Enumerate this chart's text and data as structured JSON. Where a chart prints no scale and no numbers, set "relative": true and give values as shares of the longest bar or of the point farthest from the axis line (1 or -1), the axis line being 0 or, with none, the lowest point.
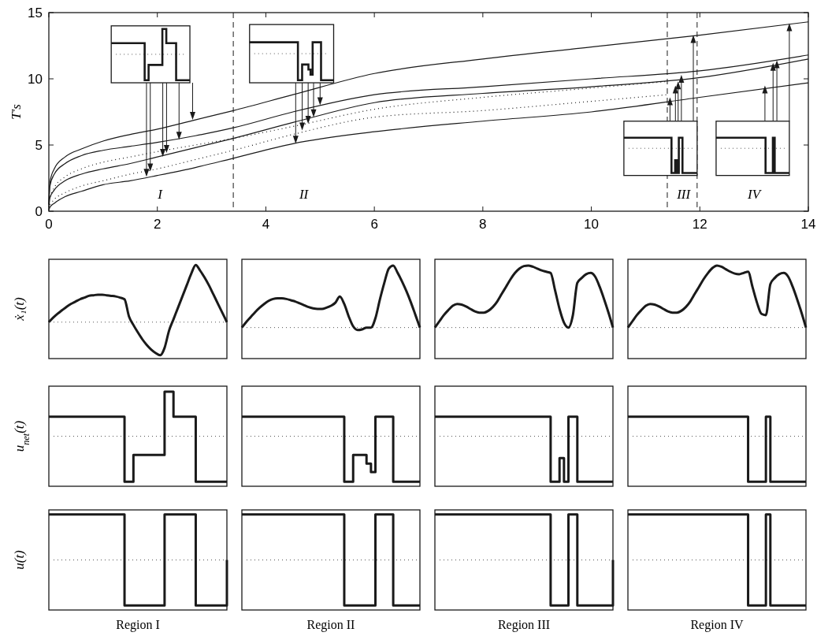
{
  "chart_data": [
    {
      "type": "line",
      "ylabel": "T's",
      "xlim": [
        0,
        14
      ],
      "ylim": [
        0,
        15
      ],
      "xticks": [
        0,
        2,
        4,
        6,
        8,
        10,
        12,
        14
      ],
      "yticks": [
        0,
        5,
        10,
        15
      ],
      "series": [
        {
          "color": "#1a1a1a",
          "x": [
            0,
            0.02,
            0.1,
            0.3,
            0.6,
            1,
            1.5,
            2,
            2.7,
            3.4,
            4.5,
            6,
            8,
            10,
            12,
            14
          ],
          "values": [
            0.5,
            2.2,
            3.2,
            4.1,
            4.7,
            5.3,
            5.8,
            6.2,
            6.9,
            7.6,
            8.8,
            10.4,
            11.5,
            12.4,
            13.3,
            14.3
          ]
        },
        {
          "color": "#1a1a1a",
          "x": [
            0,
            0.02,
            0.1,
            0.3,
            0.6,
            1,
            1.5,
            2,
            2.7,
            3.4,
            4.5,
            6,
            8,
            10,
            12,
            14
          ],
          "values": [
            0.5,
            1.9,
            2.8,
            3.6,
            4.2,
            4.6,
            4.9,
            5.2,
            5.7,
            6.3,
            7.5,
            8.8,
            9.4,
            10,
            10.6,
            11.8
          ]
        },
        {
          "color": "#1a1a1a",
          "x": [
            0,
            0.02,
            0.1,
            0.3,
            0.6,
            1,
            1.5,
            2,
            2.7,
            3.4,
            4.5,
            6,
            8,
            10,
            12,
            14
          ],
          "values": [
            0.3,
            1,
            1.6,
            2.3,
            2.8,
            3.2,
            3.6,
            4.1,
            4.8,
            5.5,
            6.7,
            8.2,
            8.9,
            9.4,
            10.1,
            11.5
          ]
        },
        {
          "color": "#1a1a1a",
          "x": [
            0,
            0.02,
            0.1,
            0.3,
            0.6,
            1,
            1.5,
            2,
            2.7,
            3.4,
            4.5,
            6,
            8,
            10,
            12,
            14
          ],
          "values": [
            0.1,
            0.3,
            0.6,
            1.1,
            1.5,
            2,
            2.3,
            2.7,
            3.3,
            4,
            5.1,
            6,
            6.8,
            7.5,
            8.6,
            9.7
          ]
        },
        {
          "color": "#1a1a1a",
          "line_style": "dotted",
          "x": [
            0.02,
            0.1,
            0.3,
            0.6,
            1,
            1.5,
            2,
            2.7,
            3.4,
            4.5,
            6,
            8,
            10,
            11.4
          ],
          "values": [
            1.1,
            1.8,
            2.6,
            3.2,
            3.7,
            4.1,
            4.5,
            5,
            5.5,
            6.4,
            7.7,
            8.6,
            9.3,
            9.8
          ]
        },
        {
          "color": "#1a1a1a",
          "line_style": "dotted",
          "x": [
            0.02,
            0.1,
            0.3,
            0.6,
            1,
            1.5,
            2,
            2.7,
            3.4,
            4.5,
            6,
            8,
            10,
            11.4
          ],
          "values": [
            0.5,
            0.9,
            1.4,
            1.9,
            2.3,
            2.8,
            3.2,
            3.9,
            4.6,
            5.8,
            7.1,
            7.6,
            8.3,
            8.8
          ]
        }
      ],
      "ref_lines": [
        {
          "axis": "x",
          "value": 3.4,
          "line_style": "dashed"
        },
        {
          "axis": "x",
          "value": 11.4,
          "line_style": "dashed"
        },
        {
          "axis": "x",
          "value": 11.95,
          "line_style": "dashed"
        }
      ],
      "annotations": [
        "I",
        "II",
        "III",
        "IV"
      ]
    },
    {
      "type": "line",
      "relative": true,
      "ylabel": "ẋ₁(t)",
      "color": "#1a1a1a",
      "ref_lines": [
        {
          "axis": "y",
          "value": 0,
          "line_style": "dotted"
        }
      ],
      "categories": [
        null,
        null,
        null,
        null,
        null,
        null,
        null,
        null,
        null,
        null,
        null,
        null,
        null,
        null,
        null,
        null,
        null,
        null,
        null,
        null,
        null,
        null,
        null,
        null,
        null,
        null,
        null,
        null,
        null,
        null,
        null,
        null,
        null,
        null,
        null,
        null,
        null,
        null,
        null,
        null,
        null
      ],
      "values": [
        0,
        0.08,
        0.15,
        0.21,
        0.27,
        0.32,
        0.36,
        0.4,
        0.43,
        0.46,
        0.47,
        0.48,
        0.48,
        0.47,
        0.46,
        0.45,
        0.43,
        0.4,
        0.1,
        -0.05,
        -0.18,
        -0.3,
        -0.4,
        -0.48,
        -0.54,
        -0.58,
        -0.45,
        -0.15,
        0.05,
        0.25,
        0.45,
        0.65,
        0.85,
        1,
        0.9,
        0.78,
        0.64,
        0.48,
        0.32,
        0.16,
        0
      ]
    },
    {
      "type": "line",
      "relative": true,
      "color": "#1a1a1a",
      "ref_lines": [
        {
          "axis": "y",
          "value": 0,
          "line_style": "dotted"
        }
      ],
      "categories": [
        null,
        null,
        null,
        null,
        null,
        null,
        null,
        null,
        null,
        null,
        null,
        null,
        null,
        null,
        null,
        null,
        null,
        null,
        null,
        null,
        null,
        null,
        null,
        null,
        null,
        null,
        null,
        null,
        null,
        null,
        null,
        null,
        null,
        null,
        null,
        null,
        null,
        null,
        null,
        null,
        null
      ],
      "values": [
        0,
        0.09,
        0.17,
        0.25,
        0.32,
        0.38,
        0.43,
        0.46,
        0.47,
        0.47,
        0.46,
        0.44,
        0.42,
        0.39,
        0.36,
        0.33,
        0.31,
        0.3,
        0.3,
        0.32,
        0.35,
        0.4,
        0.5,
        0.38,
        0.18,
        0.02,
        -0.04,
        -0.03,
        0,
        0,
        0.15,
        0.45,
        0.72,
        0.95,
        1,
        0.88,
        0.74,
        0.58,
        0.4,
        0.2,
        0
      ]
    },
    {
      "type": "line",
      "relative": true,
      "color": "#1a1a1a",
      "ref_lines": [
        {
          "axis": "y",
          "value": 0,
          "line_style": "dotted"
        }
      ],
      "categories": [
        null,
        null,
        null,
        null,
        null,
        null,
        null,
        null,
        null,
        null,
        null,
        null,
        null,
        null,
        null,
        null,
        null,
        null,
        null,
        null,
        null,
        null,
        null,
        null,
        null,
        null,
        null,
        null,
        null,
        null,
        null,
        null,
        null,
        null,
        null,
        null,
        null,
        null,
        null,
        null,
        null
      ],
      "values": [
        0,
        0.1,
        0.2,
        0.28,
        0.35,
        0.38,
        0.37,
        0.34,
        0.3,
        0.26,
        0.24,
        0.24,
        0.27,
        0.33,
        0.42,
        0.54,
        0.66,
        0.78,
        0.88,
        0.95,
        0.99,
        1,
        0.98,
        0.95,
        0.92,
        0.9,
        0.88,
        0.6,
        0.3,
        0.08,
        0,
        0.2,
        0.72,
        0.8,
        0.86,
        0.88,
        0.82,
        0.66,
        0.46,
        0.24,
        0
      ]
    },
    {
      "type": "line",
      "relative": true,
      "color": "#1a1a1a",
      "ref_lines": [
        {
          "axis": "y",
          "value": 0,
          "line_style": "dotted"
        }
      ],
      "categories": [
        null,
        null,
        null,
        null,
        null,
        null,
        null,
        null,
        null,
        null,
        null,
        null,
        null,
        null,
        null,
        null,
        null,
        null,
        null,
        null,
        null,
        null,
        null,
        null,
        null,
        null,
        null,
        null,
        null,
        null,
        null,
        null,
        null,
        null,
        null,
        null,
        null,
        null,
        null,
        null,
        null
      ],
      "values": [
        0,
        0.1,
        0.2,
        0.28,
        0.35,
        0.38,
        0.37,
        0.34,
        0.3,
        0.26,
        0.24,
        0.24,
        0.27,
        0.33,
        0.42,
        0.54,
        0.66,
        0.78,
        0.88,
        0.96,
        1,
        0.98,
        0.94,
        0.9,
        0.87,
        0.86,
        0.88,
        0.9,
        0.65,
        0.4,
        0.22,
        0.2,
        0.7,
        0.8,
        0.86,
        0.88,
        0.82,
        0.66,
        0.46,
        0.24,
        0
      ]
    },
    {
      "type": "step",
      "relative": true,
      "ylabel": "u$_{net}$(t)",
      "color": "#1a1a1a",
      "ref_lines": [
        {
          "axis": "y",
          "value": 0,
          "line_style": "dotted"
        }
      ],
      "categories": [
        null,
        null,
        null,
        null,
        null,
        null,
        null,
        null,
        null,
        null,
        null,
        null,
        null,
        null,
        null,
        null,
        null,
        null,
        null,
        null,
        null,
        null,
        null,
        null,
        null,
        null,
        null,
        null,
        null,
        null,
        null,
        null,
        null,
        null,
        null,
        null,
        null,
        null,
        null,
        null,
        null
      ],
      "values": [
        0.43,
        0.43,
        0.43,
        0.43,
        0.43,
        0.43,
        0.43,
        0.43,
        0.43,
        0.43,
        0.43,
        0.43,
        0.43,
        0.43,
        0.43,
        0.43,
        0.43,
        -1,
        -1,
        -0.41,
        -0.41,
        -0.41,
        -0.41,
        -0.41,
        -0.41,
        -0.41,
        0.98,
        0.98,
        0.43,
        0.43,
        0.43,
        0.43,
        0.43,
        -1,
        -1,
        -1,
        -1,
        -1,
        -1,
        -1,
        -1
      ]
    },
    {
      "type": "step",
      "relative": true,
      "color": "#1a1a1a",
      "ref_lines": [
        {
          "axis": "y",
          "value": 0,
          "line_style": "dotted"
        }
      ],
      "categories": [
        null,
        null,
        null,
        null,
        null,
        null,
        null,
        null,
        null,
        null,
        null,
        null,
        null,
        null,
        null,
        null,
        null,
        null,
        null,
        null,
        null,
        null,
        null,
        null,
        null,
        null,
        null,
        null,
        null,
        null,
        null,
        null,
        null,
        null,
        null,
        null,
        null,
        null,
        null,
        null,
        null
      ],
      "values": [
        0.43,
        0.43,
        0.43,
        0.43,
        0.43,
        0.43,
        0.43,
        0.43,
        0.43,
        0.43,
        0.43,
        0.43,
        0.43,
        0.43,
        0.43,
        0.43,
        0.43,
        0.43,
        0.43,
        0.43,
        0.43,
        0.43,
        0.43,
        -1,
        -1,
        -0.41,
        -0.41,
        -0.41,
        -0.6,
        -0.79,
        0.43,
        0.43,
        0.43,
        0.43,
        -1,
        -1,
        -1,
        -1,
        -1,
        -1,
        -1
      ]
    },
    {
      "type": "step",
      "relative": true,
      "color": "#1a1a1a",
      "ref_lines": [
        {
          "axis": "y",
          "value": 0,
          "line_style": "dotted"
        }
      ],
      "categories": [
        null,
        null,
        null,
        null,
        null,
        null,
        null,
        null,
        null,
        null,
        null,
        null,
        null,
        null,
        null,
        null,
        null,
        null,
        null,
        null,
        null,
        null,
        null,
        null,
        null,
        null,
        null,
        null,
        null,
        null,
        null,
        null,
        null,
        null,
        null,
        null,
        null,
        null,
        null,
        null,
        null
      ],
      "values": [
        0.43,
        0.43,
        0.43,
        0.43,
        0.43,
        0.43,
        0.43,
        0.43,
        0.43,
        0.43,
        0.43,
        0.43,
        0.43,
        0.43,
        0.43,
        0.43,
        0.43,
        0.43,
        0.43,
        0.43,
        0.43,
        0.43,
        0.43,
        0.43,
        0.43,
        0.43,
        -1,
        -1,
        -0.48,
        -1,
        0.43,
        0.43,
        -1,
        -1,
        -1,
        -1,
        -1,
        -1,
        -1,
        -1,
        -1
      ]
    },
    {
      "type": "step",
      "relative": true,
      "color": "#1a1a1a",
      "ref_lines": [
        {
          "axis": "y",
          "value": 0,
          "line_style": "dotted"
        }
      ],
      "categories": [
        null,
        null,
        null,
        null,
        null,
        null,
        null,
        null,
        null,
        null,
        null,
        null,
        null,
        null,
        null,
        null,
        null,
        null,
        null,
        null,
        null,
        null,
        null,
        null,
        null,
        null,
        null,
        null,
        null,
        null,
        null,
        null,
        null,
        null,
        null,
        null,
        null,
        null,
        null,
        null,
        null
      ],
      "values": [
        0.43,
        0.43,
        0.43,
        0.43,
        0.43,
        0.43,
        0.43,
        0.43,
        0.43,
        0.43,
        0.43,
        0.43,
        0.43,
        0.43,
        0.43,
        0.43,
        0.43,
        0.43,
        0.43,
        0.43,
        0.43,
        0.43,
        0.43,
        0.43,
        0.43,
        0.43,
        0.43,
        -1,
        -1,
        -1,
        -1,
        0.43,
        -1,
        -1,
        -1,
        -1,
        -1,
        -1,
        -1,
        -1,
        -1
      ]
    },
    {
      "type": "step",
      "relative": true,
      "ylabel": "u(t)",
      "xlabel": "Region I",
      "color": "#1a1a1a",
      "ref_lines": [
        {
          "axis": "y",
          "value": 0,
          "line_style": "dotted"
        }
      ],
      "categories": [
        null,
        null,
        null,
        null,
        null,
        null,
        null,
        null,
        null,
        null,
        null,
        null,
        null,
        null,
        null,
        null,
        null,
        null,
        null,
        null,
        null,
        null,
        null,
        null,
        null,
        null,
        null,
        null,
        null,
        null,
        null,
        null,
        null,
        null,
        null,
        null,
        null,
        null,
        null,
        null,
        null
      ],
      "values": [
        1,
        1,
        1,
        1,
        1,
        1,
        1,
        1,
        1,
        1,
        1,
        1,
        1,
        1,
        1,
        1,
        1,
        -1,
        -1,
        -1,
        -1,
        -1,
        -1,
        -1,
        -1,
        -1,
        1,
        1,
        1,
        1,
        1,
        1,
        1,
        -1,
        -1,
        -1,
        -1,
        -1,
        -1,
        -1,
        0
      ]
    },
    {
      "type": "step",
      "relative": true,
      "xlabel": "Region II",
      "color": "#1a1a1a",
      "ref_lines": [
        {
          "axis": "y",
          "value": 0,
          "line_style": "dotted"
        }
      ],
      "categories": [
        null,
        null,
        null,
        null,
        null,
        null,
        null,
        null,
        null,
        null,
        null,
        null,
        null,
        null,
        null,
        null,
        null,
        null,
        null,
        null,
        null,
        null,
        null,
        null,
        null,
        null,
        null,
        null,
        null,
        null,
        null,
        null,
        null,
        null,
        null,
        null,
        null,
        null,
        null,
        null,
        null
      ],
      "values": [
        1,
        1,
        1,
        1,
        1,
        1,
        1,
        1,
        1,
        1,
        1,
        1,
        1,
        1,
        1,
        1,
        1,
        1,
        1,
        1,
        1,
        1,
        1,
        -1,
        -1,
        -1,
        -1,
        -1,
        -1,
        -1,
        1,
        1,
        1,
        1,
        -1,
        -1,
        -1,
        -1,
        -1,
        -1,
        -1
      ]
    },
    {
      "type": "step",
      "relative": true,
      "xlabel": "Region III",
      "color": "#1a1a1a",
      "ref_lines": [
        {
          "axis": "y",
          "value": 0,
          "line_style": "dotted"
        }
      ],
      "categories": [
        null,
        null,
        null,
        null,
        null,
        null,
        null,
        null,
        null,
        null,
        null,
        null,
        null,
        null,
        null,
        null,
        null,
        null,
        null,
        null,
        null,
        null,
        null,
        null,
        null,
        null,
        null,
        null,
        null,
        null,
        null,
        null,
        null,
        null,
        null,
        null,
        null,
        null,
        null,
        null,
        null
      ],
      "values": [
        1,
        1,
        1,
        1,
        1,
        1,
        1,
        1,
        1,
        1,
        1,
        1,
        1,
        1,
        1,
        1,
        1,
        1,
        1,
        1,
        1,
        1,
        1,
        1,
        1,
        1,
        -1,
        -1,
        -1,
        -1,
        1,
        1,
        -1,
        -1,
        -1,
        -1,
        -1,
        -1,
        -1,
        -1,
        0
      ]
    },
    {
      "type": "step",
      "relative": true,
      "xlabel": "Region IV",
      "color": "#1a1a1a",
      "ref_lines": [
        {
          "axis": "y",
          "value": 0,
          "line_style": "dotted"
        }
      ],
      "categories": [
        null,
        null,
        null,
        null,
        null,
        null,
        null,
        null,
        null,
        null,
        null,
        null,
        null,
        null,
        null,
        null,
        null,
        null,
        null,
        null,
        null,
        null,
        null,
        null,
        null,
        null,
        null,
        null,
        null,
        null,
        null,
        null,
        null,
        null,
        null,
        null,
        null,
        null,
        null,
        null,
        null
      ],
      "values": [
        1,
        1,
        1,
        1,
        1,
        1,
        1,
        1,
        1,
        1,
        1,
        1,
        1,
        1,
        1,
        1,
        1,
        1,
        1,
        1,
        1,
        1,
        1,
        1,
        1,
        1,
        1,
        -1,
        -1,
        -1,
        -1,
        1,
        -1,
        -1,
        -1,
        -1,
        -1,
        -1,
        -1,
        -1,
        -1
      ]
    }
  ]
}
